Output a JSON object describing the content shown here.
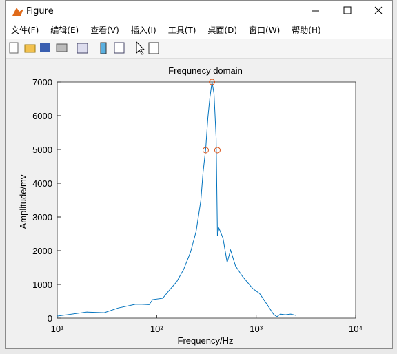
{
  "window": {
    "title": "Figure",
    "menu": [
      "文件(F)",
      "编辑(E)",
      "查看(V)",
      "插入(I)",
      "工具(T)",
      "桌面(D)",
      "窗口(W)",
      "帮助(H)"
    ]
  },
  "chart_data": {
    "type": "line",
    "title": "Frequnecy domain",
    "x_label": "Frequency/Hz",
    "y_label": "Amplitude/mv",
    "x_scale": "log",
    "xlim": [
      10,
      10000
    ],
    "xticks": [
      {
        "value": 10,
        "label": "10¹"
      },
      {
        "value": 100,
        "label": "10²"
      },
      {
        "value": 1000,
        "label": "10³"
      },
      {
        "value": 10000,
        "label": "10⁴"
      }
    ],
    "ylim": [
      0,
      7000
    ],
    "yticks": [
      0,
      1000,
      2000,
      3000,
      4000,
      5000,
      6000,
      7000
    ],
    "grid": false,
    "series": [
      {
        "color": "#0072bd",
        "style": "line",
        "x": [
          10,
          19.9,
          29.7,
          40.8,
          61,
          71,
          84,
          91,
          115,
          135,
          159,
          187,
          219,
          249,
          278,
          292,
          311,
          327,
          343,
          360,
          377,
          396,
          408,
          422,
          464,
          511,
          553,
          619,
          727,
          922,
          1083,
          1271,
          1492,
          1615,
          1750,
          1959,
          2225,
          2530
        ],
        "values": [
          60,
          180,
          160,
          300,
          410,
          410,
          400,
          550,
          590,
          840,
          1080,
          1450,
          1960,
          2570,
          3490,
          4300,
          5020,
          5940,
          6550,
          7000,
          6650,
          5330,
          2430,
          2670,
          2370,
          1650,
          2020,
          1550,
          1240,
          880,
          730,
          430,
          120,
          40,
          120,
          100,
          120,
          80
        ]
      },
      {
        "color": "#d95319",
        "style": "circle",
        "x": [
          311,
          360,
          408
        ],
        "values": [
          4980,
          7000,
          4980
        ]
      }
    ]
  }
}
